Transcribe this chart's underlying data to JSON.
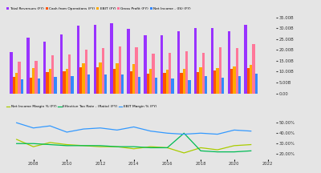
{
  "years": [
    2007,
    2008,
    2009,
    2010,
    2011,
    2012,
    2013,
    2014,
    2015,
    2016,
    2017,
    2018,
    2019,
    2020,
    2021
  ],
  "total_revenues": [
    19000,
    25500,
    23800,
    27200,
    31100,
    31400,
    32300,
    29700,
    26800,
    26700,
    28700,
    29900,
    29900,
    28700,
    31400
  ],
  "cash_from_ops": [
    7500,
    7200,
    9800,
    10200,
    12000,
    12000,
    11200,
    10200,
    9200,
    9300,
    9500,
    9800,
    10500,
    11200,
    11500
  ],
  "ebit": [
    9500,
    11500,
    11200,
    11200,
    13800,
    14200,
    13800,
    13500,
    11200,
    10700,
    11200,
    11900,
    11600,
    12200,
    13200
  ],
  "gross_profit": [
    14500,
    14800,
    17500,
    17800,
    20200,
    20700,
    21500,
    21200,
    18200,
    18500,
    19500,
    18700,
    21200,
    21000,
    22500
  ],
  "net_income": [
    6500,
    6800,
    7400,
    7900,
    8800,
    8500,
    8600,
    7500,
    7200,
    7000,
    6000,
    7900,
    7200,
    8000,
    9100
  ],
  "net_income_margin": [
    34,
    27,
    31,
    29,
    28,
    27,
    27,
    25,
    27,
    26,
    21,
    26,
    24,
    28,
    29
  ],
  "eff_tax_rate": [
    30,
    30,
    29,
    28,
    28,
    28,
    27,
    27,
    26,
    26,
    40,
    23,
    22,
    22,
    23
  ],
  "ebit_margin": [
    50,
    45,
    47,
    41,
    44,
    45,
    43,
    46,
    42,
    40,
    39,
    40,
    39,
    43,
    42
  ],
  "bar_width": 0.16,
  "colors": {
    "total_revenues": "#9933ff",
    "cash_from_ops": "#ff5500",
    "ebit": "#ffaa00",
    "gross_profit": "#ff7799",
    "net_income": "#3388ff"
  },
  "line_colors": {
    "net_income_margin": "#aacc00",
    "eff_tax_rate": "#00bb55",
    "ebit_margin": "#3399ff"
  },
  "legend1_labels": [
    "Total Revenues (FY)",
    "Cash from Operations (FY)",
    "EBIT (FY)",
    "Gross Profit (FY)",
    "Net Income - (IS) (FY)"
  ],
  "legend2_labels": [
    "Net Income Margin % (FY)",
    "Effective Tax Rate - (Ratio) (FY)",
    "EBIT Margin % (FY)"
  ],
  "yticks_bar": [
    0,
    5000,
    10000,
    15000,
    20000,
    25000,
    30000,
    35000
  ],
  "yticks_line": [
    20,
    30,
    40,
    50
  ],
  "bg_color": "#e5e5e5",
  "grid_color": "#ffffff"
}
